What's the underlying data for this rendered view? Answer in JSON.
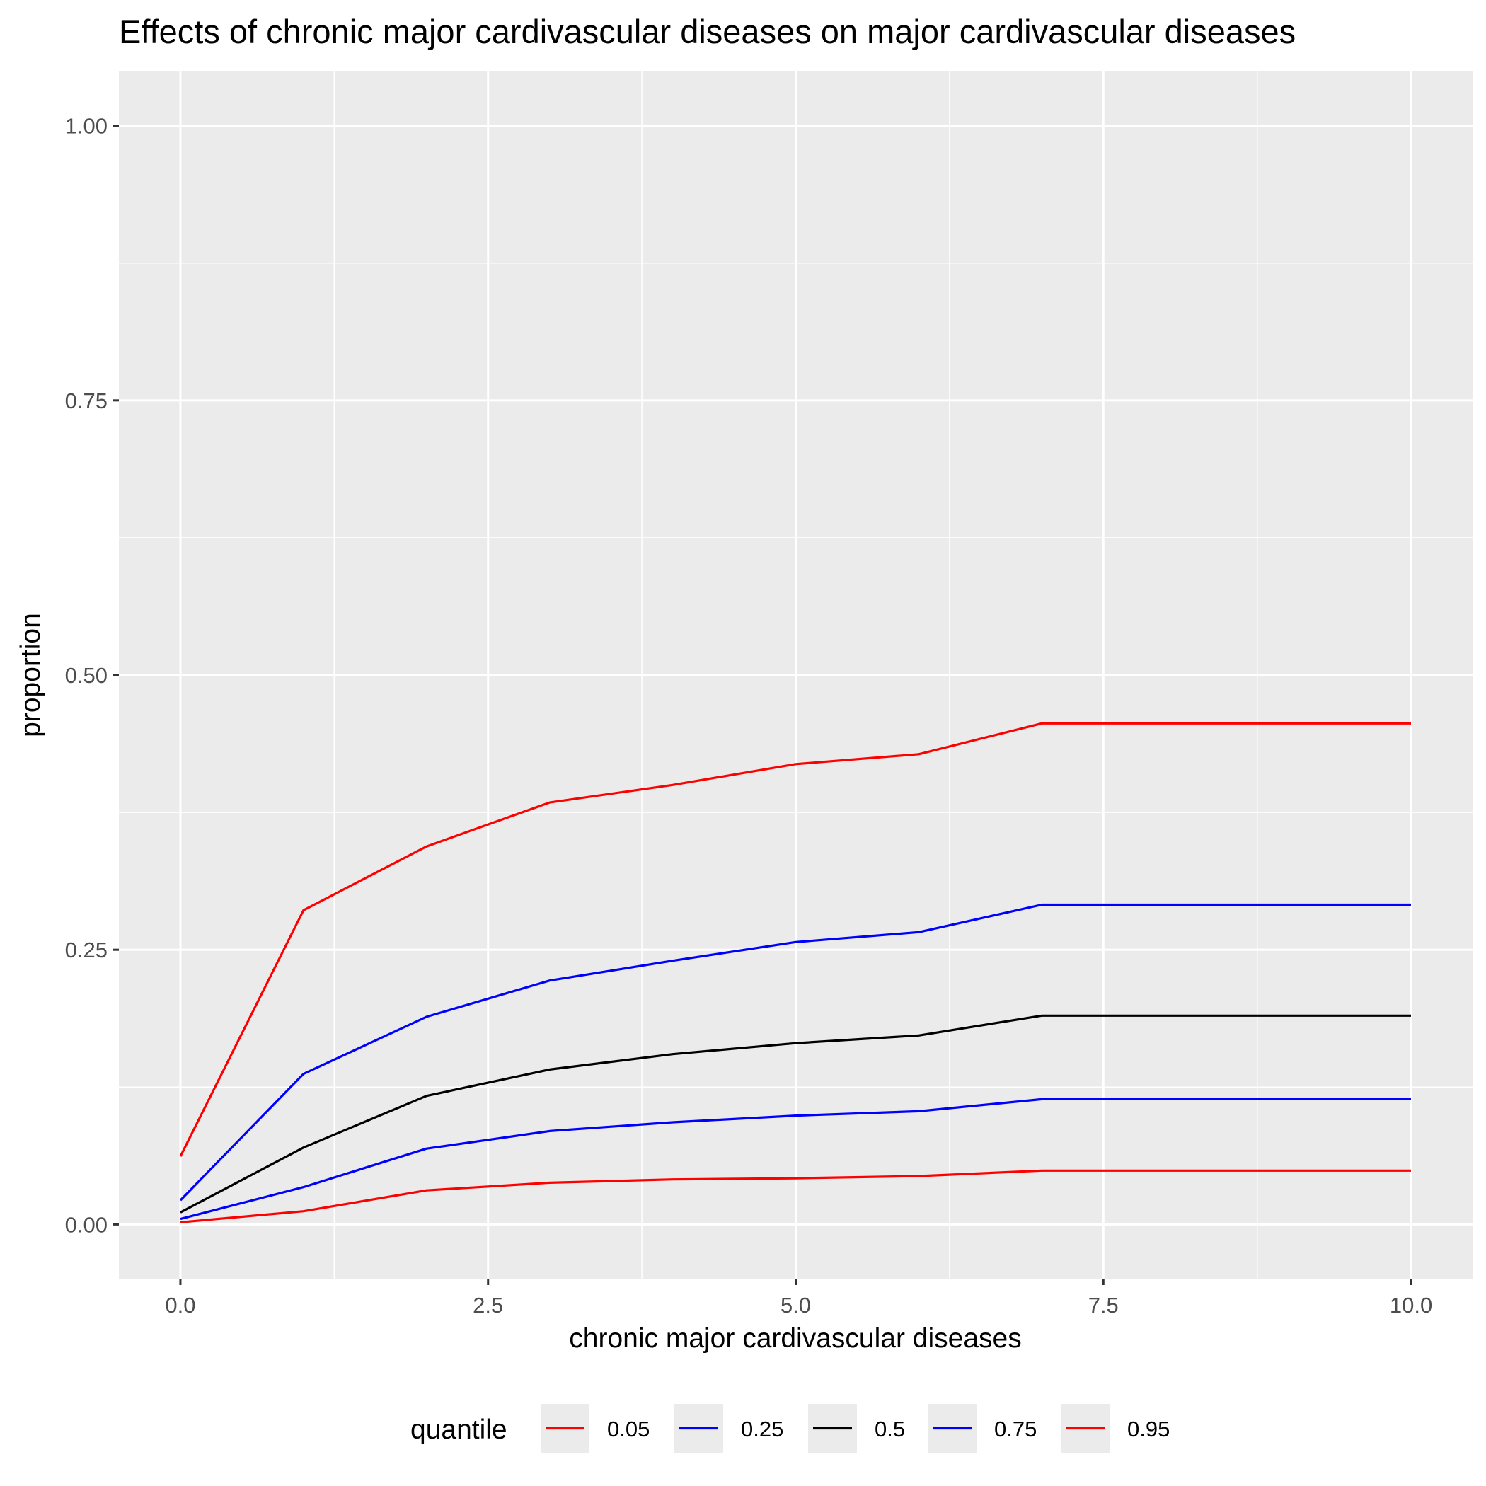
{
  "chart_data": {
    "type": "line",
    "title": "Effects of chronic major cardivascular diseases on major cardivascular diseases",
    "xlabel": "chronic major cardivascular diseases",
    "ylabel": "proportion",
    "xlim": [
      -0.5,
      10.5
    ],
    "ylim": [
      -0.05,
      1.05
    ],
    "x_ticks": [
      0,
      2.5,
      5,
      7.5,
      10
    ],
    "x_tick_labels": [
      "0.0",
      "2.5",
      "5.0",
      "7.5",
      "10.0"
    ],
    "y_ticks": [
      0,
      0.25,
      0.5,
      0.75,
      1
    ],
    "y_tick_labels": [
      "0.00",
      "0.25",
      "0.50",
      "0.75",
      "1.00"
    ],
    "grid": true,
    "legend": {
      "title": "quantile",
      "position": "bottom"
    },
    "x": [
      0,
      1,
      2,
      3,
      4,
      5,
      6,
      7,
      8,
      9,
      10
    ],
    "series": [
      {
        "name": "0.05",
        "color": "#ff0000",
        "values": [
          0.002,
          0.012,
          0.031,
          0.038,
          0.041,
          0.042,
          0.044,
          0.049,
          0.049,
          0.049,
          0.049
        ]
      },
      {
        "name": "0.25",
        "color": "#0000ff",
        "values": [
          0.005,
          0.034,
          0.069,
          0.085,
          0.093,
          0.099,
          0.103,
          0.114,
          0.114,
          0.114,
          0.114
        ]
      },
      {
        "name": "0.5",
        "color": "#000000",
        "values": [
          0.011,
          0.07,
          0.117,
          0.141,
          0.155,
          0.165,
          0.172,
          0.19,
          0.19,
          0.19,
          0.19
        ]
      },
      {
        "name": "0.75",
        "color": "#0000ff",
        "values": [
          0.022,
          0.137,
          0.189,
          0.222,
          0.24,
          0.257,
          0.266,
          0.291,
          0.291,
          0.291,
          0.291
        ]
      },
      {
        "name": "0.95",
        "color": "#ff0000",
        "values": [
          0.062,
          0.286,
          0.344,
          0.384,
          0.4,
          0.419,
          0.428,
          0.456,
          0.456,
          0.456,
          0.456
        ]
      }
    ]
  }
}
